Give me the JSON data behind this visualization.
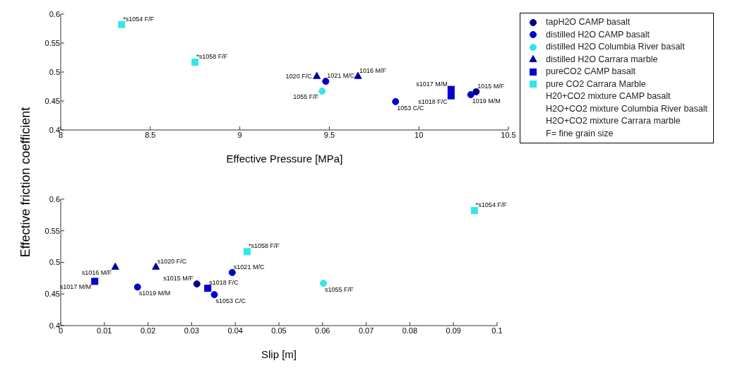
{
  "chart_data": [
    {
      "type": "scatter",
      "xlabel": "Effective Pressure [MPa]",
      "ylabel": "Effective friction coefficient",
      "xlim": [
        8,
        10.5
      ],
      "xticks": [
        8,
        8.5,
        9,
        9.5,
        10,
        10.5
      ],
      "ylim": [
        0.4,
        0.6
      ],
      "yticks": [
        0.4,
        0.45,
        0.5,
        0.55,
        0.6
      ],
      "grid": false,
      "legend": "right",
      "series": [
        {
          "name": "tapH2O CAMP basalt",
          "color": "#00008b",
          "marker": "circle",
          "x": [
            10.32
          ],
          "values": [
            0.466
          ]
        },
        {
          "name": "distilled H2O CAMP basalt",
          "color": "#0000cd",
          "marker": "circle",
          "x": [
            9.48,
            9.87,
            10.29
          ],
          "values": [
            0.484,
            0.449,
            0.461
          ]
        },
        {
          "name": "distilled H2O Columbia River basalt",
          "color": "#33e6e6",
          "marker": "circle",
          "x": [
            9.46
          ],
          "values": [
            0.467
          ]
        },
        {
          "name": "distilled H2O Carrara marble",
          "color": "#0000a8",
          "marker": "triangle",
          "x": [
            9.43,
            9.66
          ],
          "values": [
            0.493,
            0.493
          ]
        },
        {
          "name": "pureCO2 CAMP basalt",
          "color": "#0000cd",
          "marker": "square",
          "x": [
            10.18,
            10.18
          ],
          "values": [
            0.47,
            0.459
          ]
        },
        {
          "name": "pure CO2 Carrara Marble",
          "color": "#33e6e6",
          "marker": "square",
          "x": [
            8.34,
            8.75
          ],
          "values": [
            0.582,
            0.517
          ]
        },
        {
          "name": "H20+CO2 mixture CAMP basalt",
          "marker": "none"
        },
        {
          "name": "H2O+CO2 mixture Columbia River basalt",
          "marker": "none"
        },
        {
          "name": "H2O+CO2 mixture Carrara marble",
          "marker": "none"
        },
        {
          "name": "F= fine grain size",
          "marker": "none"
        }
      ],
      "annotations": [
        {
          "text": "*s1054 F/F",
          "x": 8.34,
          "y": 0.582
        },
        {
          "text": "*s1058 F/F",
          "x": 8.75,
          "y": 0.517
        },
        {
          "text": "1020 F/C",
          "x": 9.43,
          "y": 0.493
        },
        {
          "text": "1021 M/C",
          "x": 9.48,
          "y": 0.484
        },
        {
          "text": "1016 M/F",
          "x": 9.66,
          "y": 0.493
        },
        {
          "text": "1055 F/F",
          "x": 9.46,
          "y": 0.467
        },
        {
          "text": "1053 C/C",
          "x": 9.87,
          "y": 0.449
        },
        {
          "text": "s1017 M/M",
          "x": 10.18,
          "y": 0.47
        },
        {
          "text": "s1018 F/C",
          "x": 10.18,
          "y": 0.459
        },
        {
          "text": "1015 M/F",
          "x": 10.32,
          "y": 0.466
        },
        {
          "text": "1019 M/M",
          "x": 10.29,
          "y": 0.461
        }
      ]
    },
    {
      "type": "scatter",
      "xlabel": "Slip [m]",
      "xlim": [
        0,
        0.1
      ],
      "xticks": [
        0,
        0.01,
        0.02,
        0.03,
        0.04,
        0.05,
        0.06,
        0.07,
        0.08,
        0.09,
        0.1
      ],
      "ylim": [
        0.4,
        0.6
      ],
      "yticks": [
        0.4,
        0.45,
        0.5,
        0.55,
        0.6
      ],
      "grid": false,
      "series": [
        {
          "color": "#00008b",
          "marker": "circle",
          "x": [
            0.0312
          ],
          "values": [
            0.466
          ]
        },
        {
          "color": "#0000cd",
          "marker": "circle",
          "x": [
            0.0393,
            0.0352,
            0.0176
          ],
          "values": [
            0.484,
            0.449,
            0.461
          ]
        },
        {
          "color": "#33e6e6",
          "marker": "circle",
          "x": [
            0.0602
          ],
          "values": [
            0.467
          ]
        },
        {
          "color": "#0000a8",
          "marker": "triangle",
          "x": [
            0.0125,
            0.0218
          ],
          "values": [
            0.493,
            0.493
          ]
        },
        {
          "color": "#0000cd",
          "marker": "square",
          "x": [
            0.0078,
            0.0337
          ],
          "values": [
            0.47,
            0.459
          ]
        },
        {
          "color": "#33e6e6",
          "marker": "square",
          "x": [
            0.0948,
            0.0427
          ],
          "values": [
            0.582,
            0.517
          ]
        }
      ],
      "annotations": [
        {
          "text": "*s1054 F/F",
          "x": 0.0948,
          "y": 0.582
        },
        {
          "text": "*s1058 F/F",
          "x": 0.0427,
          "y": 0.517
        },
        {
          "text": "s1020 F/C",
          "x": 0.0218,
          "y": 0.493
        },
        {
          "text": "s1016 M/F",
          "x": 0.0125,
          "y": 0.493
        },
        {
          "text": "s1017 M/M",
          "x": 0.0078,
          "y": 0.47
        },
        {
          "text": "s1019 M/M",
          "x": 0.0176,
          "y": 0.461
        },
        {
          "text": "s1015 M/F",
          "x": 0.0312,
          "y": 0.466
        },
        {
          "text": "s1018 F/C",
          "x": 0.0337,
          "y": 0.459
        },
        {
          "text": "s1021 M/C",
          "x": 0.0393,
          "y": 0.484
        },
        {
          "text": "s1053 C/C",
          "x": 0.0352,
          "y": 0.449
        },
        {
          "text": "s1055 F/F",
          "x": 0.0602,
          "y": 0.467
        }
      ]
    }
  ]
}
